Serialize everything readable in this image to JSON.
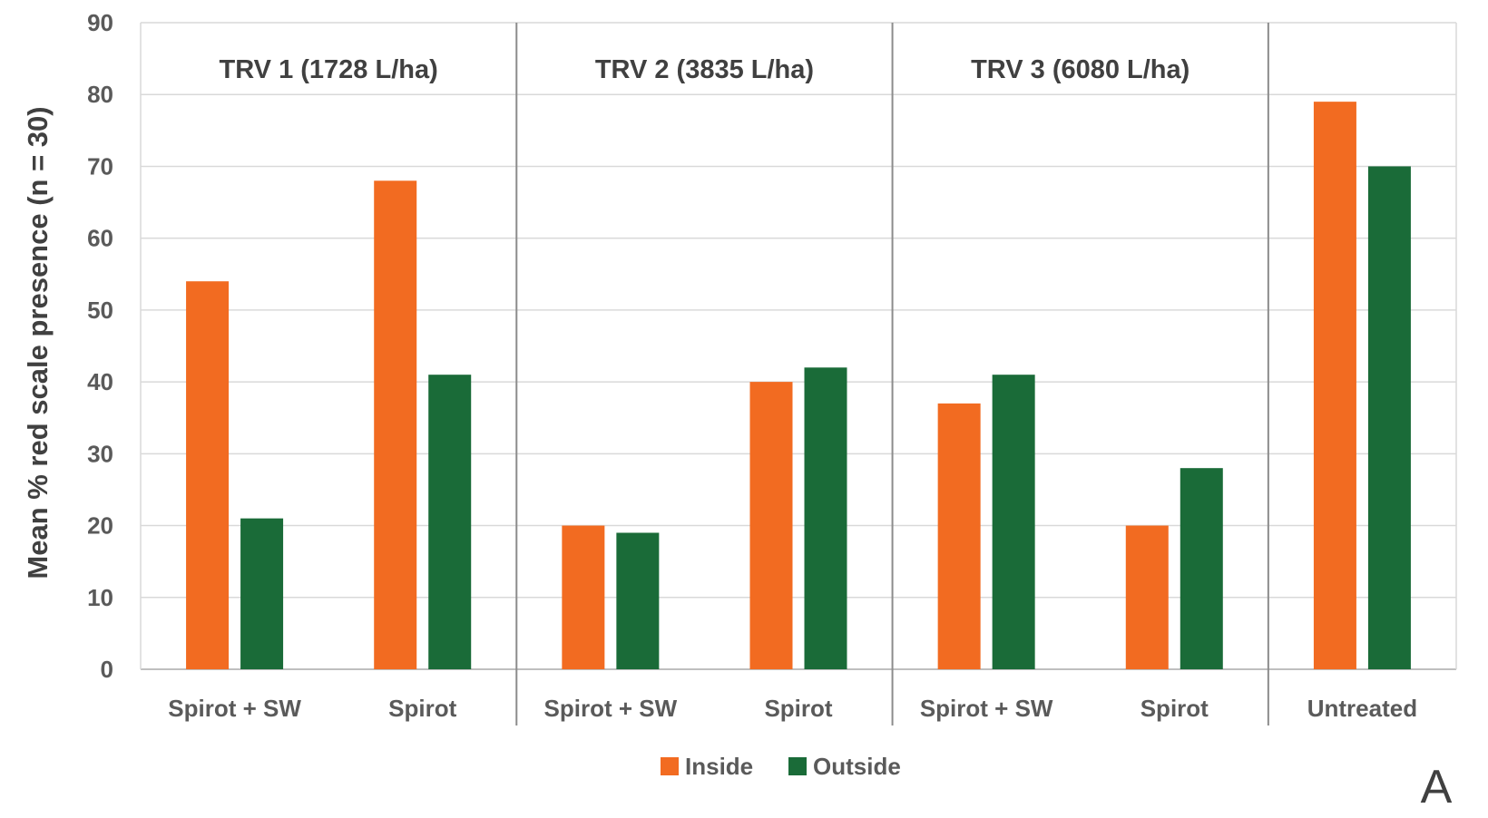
{
  "chart_data": {
    "type": "bar",
    "ylabel": "Mean % red scale presence (n = 30)",
    "xlabel": "",
    "ylim": [
      0,
      90
    ],
    "yticks": [
      0,
      10,
      20,
      30,
      40,
      50,
      60,
      70,
      80,
      90
    ],
    "grid": true,
    "legend_position": "bottom-center",
    "panel_label": "A",
    "groups": [
      {
        "label": "TRV 1 (1728 L/ha)",
        "categories": [
          "Spirot + SW",
          "Spirot"
        ]
      },
      {
        "label": "TRV 2 (3835 L/ha)",
        "categories": [
          "Spirot + SW",
          "Spirot"
        ]
      },
      {
        "label": "TRV 3 (6080 L/ha)",
        "categories": [
          "Spirot + SW",
          "Spirot"
        ]
      },
      {
        "label": "",
        "categories": [
          "Untreated"
        ]
      }
    ],
    "categories": [
      "Spirot + SW",
      "Spirot",
      "Spirot + SW",
      "Spirot",
      "Spirot + SW",
      "Spirot",
      "Untreated"
    ],
    "series": [
      {
        "name": "Inside",
        "color": "#f26b21",
        "values": [
          54,
          68,
          20,
          40,
          37,
          20,
          79
        ]
      },
      {
        "name": "Outside",
        "color": "#1a6b38",
        "values": [
          21,
          41,
          19,
          42,
          41,
          28,
          70
        ]
      }
    ]
  }
}
